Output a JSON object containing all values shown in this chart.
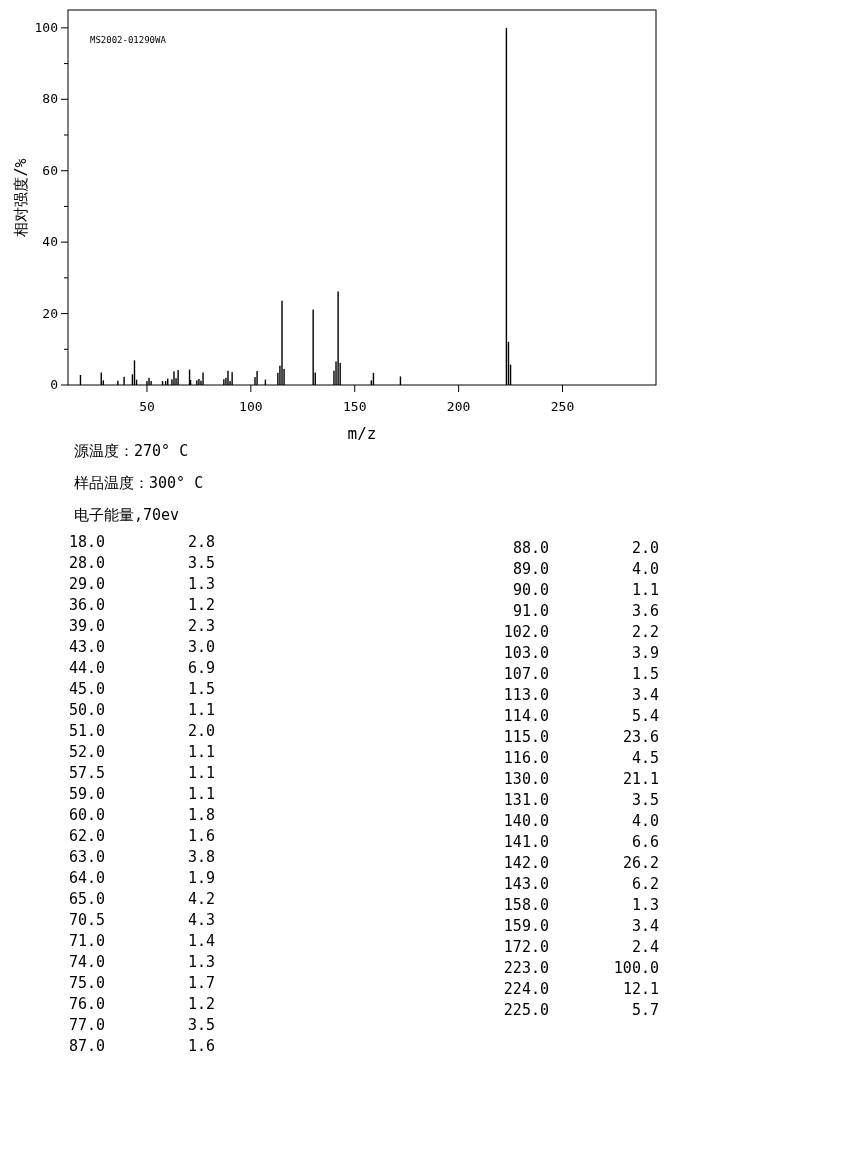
{
  "chart_data": [
    {
      "type": "bar",
      "xlabel": "m/z",
      "ylabel": "相对强度/%",
      "x": [
        18.0,
        28.0,
        29.0,
        36.0,
        39.0,
        43.0,
        44.0,
        45.0,
        50.0,
        51.0,
        52.0,
        57.5,
        59.0,
        60.0,
        62.0,
        63.0,
        64.0,
        65.0,
        70.5,
        71.0,
        74.0,
        75.0,
        76.0,
        77.0,
        87.0,
        88.0,
        89.0,
        90.0,
        91.0,
        102.0,
        103.0,
        107.0,
        113.0,
        114.0,
        115.0,
        116.0,
        130.0,
        131.0,
        140.0,
        141.0,
        142.0,
        143.0,
        158.0,
        159.0,
        172.0,
        223.0,
        224.0,
        225.0
      ],
      "values": [
        2.8,
        3.5,
        1.3,
        1.2,
        2.3,
        3.0,
        6.9,
        1.5,
        1.1,
        2.0,
        1.1,
        1.1,
        1.1,
        1.8,
        1.6,
        3.8,
        1.9,
        4.2,
        4.3,
        1.4,
        1.3,
        1.7,
        1.2,
        3.5,
        1.6,
        2.0,
        4.0,
        1.1,
        3.6,
        2.2,
        3.9,
        1.5,
        3.4,
        5.4,
        23.6,
        4.5,
        21.1,
        3.5,
        4.0,
        6.6,
        26.2,
        6.2,
        1.3,
        3.4,
        2.4,
        100.0,
        12.1,
        5.7
      ],
      "color": "#000000",
      "xlim": [
        12,
        295
      ],
      "xticks": [
        50,
        100,
        150,
        200,
        250
      ],
      "ylim": [
        0,
        105
      ],
      "yticks": [
        0,
        {
          "value": 10,
          "label": null
        },
        20,
        {
          "value": 30,
          "label": null
        },
        40,
        {
          "value": 50,
          "label": null
        },
        60,
        {
          "value": 70,
          "label": null
        },
        80,
        {
          "value": 90,
          "label": null
        },
        100
      ],
      "annotations": [
        "MS2002-01290WA",
        "源温度：270° C",
        "样品温度：300° C",
        "电子能量,70ev"
      ]
    },
    {
      "type": "other",
      "categories": [
        "18.0",
        "28.0",
        "29.0",
        "36.0",
        "39.0",
        "43.0",
        "44.0",
        "45.0",
        "50.0",
        "51.0",
        "52.0",
        "57.5",
        "59.0",
        "60.0",
        "62.0",
        "63.0",
        "64.0",
        "65.0",
        "70.5",
        "71.0",
        "74.0",
        "75.0",
        "76.0",
        "77.0",
        "87.0",
        "88.0",
        "89.0",
        "90.0",
        "91.0",
        "102.0",
        "103.0",
        "107.0",
        "113.0",
        "114.0",
        "115.0",
        "116.0",
        "130.0",
        "131.0",
        "140.0",
        "141.0",
        "142.0",
        "143.0",
        "158.0",
        "159.0",
        "172.0",
        "223.0",
        "224.0",
        "225.0"
      ],
      "values": [
        2.8,
        3.5,
        1.3,
        1.2,
        2.3,
        3.0,
        6.9,
        1.5,
        1.1,
        2.0,
        1.1,
        1.1,
        1.1,
        1.8,
        1.6,
        3.8,
        1.9,
        4.2,
        4.3,
        1.4,
        1.3,
        1.7,
        1.2,
        3.5,
        1.6,
        2.0,
        4.0,
        1.1,
        3.6,
        2.2,
        3.9,
        1.5,
        3.4,
        5.4,
        23.6,
        4.5,
        21.1,
        3.5,
        4.0,
        6.6,
        26.2,
        6.2,
        1.3,
        3.4,
        2.4,
        100.0,
        12.1,
        5.7
      ],
      "value_labels": [
        "2.8",
        "3.5",
        "1.3",
        "1.2",
        "2.3",
        "3.0",
        "6.9",
        "1.5",
        "1.1",
        "2.0",
        "1.1",
        "1.1",
        "1.1",
        "1.8",
        "1.6",
        "3.8",
        "1.9",
        "4.2",
        "4.3",
        "1.4",
        "1.3",
        "1.7",
        "1.2",
        "3.5",
        "1.6",
        "2.0",
        "4.0",
        "1.1",
        "3.6",
        "2.2",
        "3.9",
        "1.5",
        "3.4",
        "5.4",
        "23.6",
        "4.5",
        "21.1",
        "3.5",
        "4.0",
        "6.6",
        "26.2",
        "6.2",
        "1.3",
        "3.4",
        "2.4",
        "100.0",
        "12.1",
        "5.7"
      ]
    }
  ]
}
